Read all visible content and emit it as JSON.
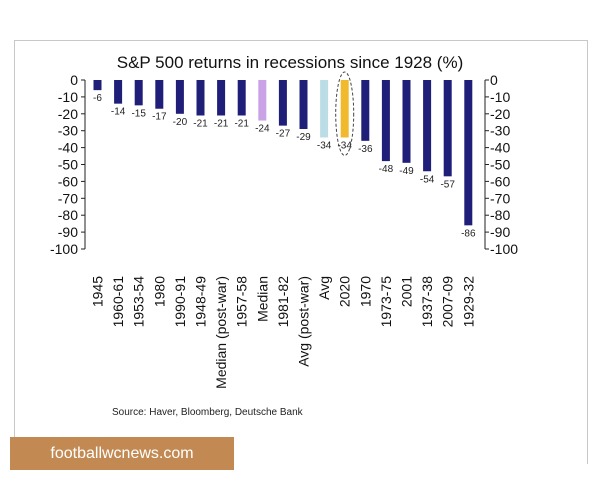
{
  "chart_data": {
    "type": "bar",
    "title": "S&P 500 returns in recessions since 1928 (%)",
    "categories": [
      "1945",
      "1960-61",
      "1953-54",
      "1980",
      "1990-91",
      "1948-49",
      "Median (post-war)",
      "1957-58",
      "Median",
      "1981-82",
      "Avg (post-war)",
      "Avg",
      "2020",
      "1970",
      "1973-75",
      "2001",
      "1937-38",
      "2007-09",
      "1929-32"
    ],
    "values": [
      -6,
      -14,
      -15,
      -17,
      -20,
      -21,
      -21,
      -21,
      -24,
      -27,
      -29,
      -34,
      -34,
      -36,
      -48,
      -49,
      -54,
      -57,
      -86
    ],
    "data_labels": [
      "-6",
      "-14",
      "-15",
      "-17",
      "-20",
      "-21",
      "-21",
      "-21",
      "-24",
      "-27",
      "-29",
      "-34",
      "-34",
      "-36",
      "-48",
      "-49",
      "-54",
      "-57",
      "-86"
    ],
    "bar_colors": [
      "#1f1f7a",
      "#1f1f7a",
      "#1f1f7a",
      "#1f1f7a",
      "#1f1f7a",
      "#1f1f7a",
      "#1f1f7a",
      "#1f1f7a",
      "#c9a3e6",
      "#1f1f7a",
      "#1f1f7a",
      "#bcdde6",
      "#f0b92e",
      "#1f1f7a",
      "#1f1f7a",
      "#1f1f7a",
      "#1f1f7a",
      "#1f1f7a",
      "#1f1f7a"
    ],
    "highlighted_category": "2020",
    "highlight_style": "dashed-ellipse",
    "ylim": [
      -100,
      0
    ],
    "yticks": [
      0,
      -10,
      -20,
      -30,
      -40,
      -50,
      -60,
      -70,
      -80,
      -90,
      -100
    ],
    "ytick_labels": [
      "0",
      "-10",
      "-20",
      "-30",
      "-40",
      "-50",
      "-60",
      "-70",
      "-80",
      "-90",
      "-100"
    ],
    "y_axis_sides": "left and right",
    "grid": false,
    "legend": false,
    "xlabel": "",
    "ylabel": "",
    "source_note": "Source: Haver, Bloomberg, Deutsche Bank"
  },
  "watermark": {
    "text": "footballwcnews.com",
    "bg_color": "#c28a52",
    "text_color": "#ffffff"
  }
}
